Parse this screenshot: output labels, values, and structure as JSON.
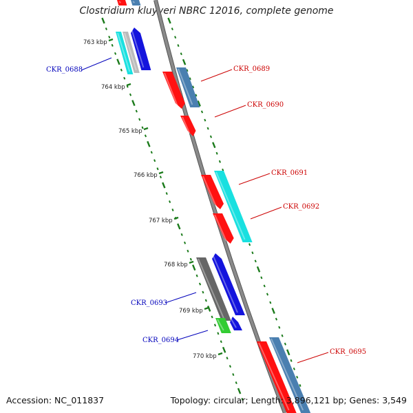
{
  "header": {
    "title": "Clostridium kluyveri NBRC 12016, complete genome"
  },
  "footer": {
    "accession": "Accession: NC_011837",
    "summary": "Topology: circular; Length: 3,896,121 bp; Genes: 3,549"
  },
  "colors": {
    "backbone": "#8a8a8a",
    "tick": "#1a7a1a",
    "label_forward": "#cc0000",
    "label_reverse": "#0000bb",
    "red": "#ff1111",
    "steelblue": "#4a7fb0",
    "cyan": "#19e0e0",
    "blue": "#1414dd",
    "gray": "#666666",
    "green": "#33cc33",
    "silver": "#bbbbbb"
  },
  "scale_labels": [
    "763 kbp",
    "764 kbp",
    "765 kbp",
    "766 kbp",
    "767 kbp",
    "768 kbp",
    "769 kbp",
    "770 kbp"
  ],
  "gene_labels": [
    {
      "text": "CKR_0688",
      "strand": "reverse"
    },
    {
      "text": "CKR_0689",
      "strand": "forward"
    },
    {
      "text": "CKR_0690",
      "strand": "forward"
    },
    {
      "text": "CKR_0691",
      "strand": "forward"
    },
    {
      "text": "CKR_0692",
      "strand": "forward"
    },
    {
      "text": "CKR_0693",
      "strand": "reverse"
    },
    {
      "text": "CKR_0694",
      "strand": "reverse"
    },
    {
      "text": "CKR_0695",
      "strand": "forward"
    }
  ]
}
